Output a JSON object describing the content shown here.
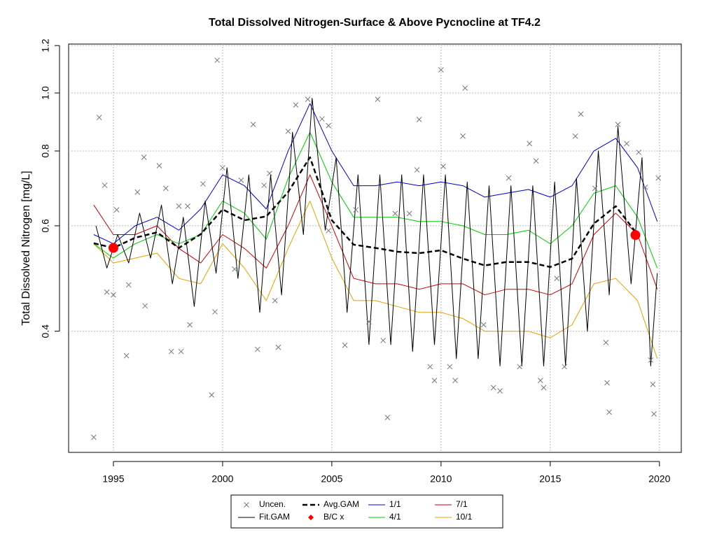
{
  "chart_data": {
    "type": "line",
    "title": "Total Dissolved Nitrogen-Surface & Above Pycnocline at TF4.2",
    "y_label": "Total Dissolved Nitrogen [mg/L]",
    "ylog": true,
    "grid": true,
    "legend": "bottom",
    "xlim": [
      1992.95,
      2021.0
    ],
    "ylim": [
      0.251,
      1.207
    ],
    "xticks": [
      1995,
      2000,
      2005,
      2010,
      2015,
      2020
    ],
    "yticks": [
      0.4,
      0.6,
      0.8,
      {
        "value": 1,
        "label": "1.0"
      },
      1.2
    ],
    "series": [
      {
        "name": "Uncen.",
        "kind": "scatter",
        "marker": "x",
        "color": "#777777",
        "x": [
          1994.1,
          1994.35,
          1994.6,
          1994.7,
          1995.0,
          1995.15,
          1995.6,
          1995.7,
          1996.1,
          1996.45,
          1996.4,
          1997.1,
          1997.4,
          1997.65,
          1998.1,
          1998.0,
          1998.4,
          1998.5,
          1999.1,
          1999.5,
          1999.75,
          2000.0,
          1999.65,
          2000.55,
          2000.85,
          2001.4,
          2001.6,
          2001.9,
          2002.15,
          2002.4,
          2002.55,
          2003.0,
          2003.35,
          2003.9,
          2004.55,
          2004.85,
          2004.85,
          2005.6,
          2006.1,
          2006.7,
          2007.1,
          2007.35,
          2007.55,
          2007.9,
          2008.55,
          2008.9,
          2009.0,
          2009.5,
          2009.7,
          2010.0,
          2010.1,
          2010.4,
          2010.65,
          2011.0,
          2011.1,
          2011.95,
          2012.4,
          2012.7,
          2013.1,
          2013.6,
          2014.05,
          2014.35,
          2014.55,
          2014.7,
          2015.3,
          2015.65,
          2016.15,
          2016.4,
          2017.05,
          2017.55,
          2017.6,
          2017.7,
          2018.1,
          2018.5,
          2019.05,
          2019.35,
          2019.6,
          2019.7,
          2019.75,
          2019.95
        ],
        "values": [
          0.266,
          0.91,
          0.701,
          0.465,
          0.46,
          0.638,
          0.364,
          0.478,
          0.683,
          0.441,
          0.781,
          0.756,
          0.693,
          0.37,
          0.37,
          0.647,
          0.647,
          0.41,
          0.705,
          0.313,
          1.134,
          0.75,
          0.431,
          0.508,
          0.715,
          0.886,
          0.373,
          0.701,
          0.734,
          0.45,
          0.376,
          0.863,
          0.955,
          0.976,
          0.905,
          0.882,
          0.589,
          0.379,
          0.638,
          0.415,
          0.976,
          0.386,
          0.287,
          0.629,
          0.629,
          0.744,
          0.903,
          0.349,
          0.331,
          1.093,
          0.754,
          0.349,
          0.331,
          0.847,
          1.019,
          0.41,
          0.322,
          0.318,
          0.721,
          0.349,
          0.823,
          0.77,
          0.331,
          0.322,
          0.49,
          0.349,
          0.847,
          0.922,
          0.693,
          0.383,
          0.328,
          0.293,
          0.886,
          0.823,
          0.796,
          0.696,
          0.358,
          0.326,
          0.291,
          0.721
        ]
      },
      {
        "name": "Fit.GAM",
        "kind": "line",
        "color": "#000000",
        "width": 1,
        "dash": "none",
        "x": [
          1994.2,
          1994.7,
          1995.2,
          1995.7,
          1996.2,
          1996.7,
          1997.2,
          1997.7,
          1998.2,
          1998.7,
          1999.2,
          1999.7,
          2000.2,
          2000.7,
          2001.2,
          2001.7,
          2002.2,
          2002.7,
          2003.2,
          2003.7,
          2004.1,
          2004.7,
          2005.2,
          2005.7,
          2006.2,
          2006.7,
          2007.2,
          2007.7,
          2008.2,
          2008.7,
          2009.2,
          2009.7,
          2010.2,
          2010.7,
          2011.2,
          2011.7,
          2012.2,
          2012.7,
          2013.2,
          2013.7,
          2014.2,
          2014.7,
          2015.2,
          2015.7,
          2016.2,
          2016.7,
          2017.2,
          2017.7,
          2018.1,
          2018.7,
          2019.2,
          2019.6,
          2019.9
        ],
        "values": [
          0.6,
          0.51,
          0.58,
          0.52,
          0.63,
          0.53,
          0.65,
          0.48,
          0.62,
          0.44,
          0.66,
          0.5,
          0.75,
          0.49,
          0.73,
          0.43,
          0.73,
          0.46,
          0.86,
          0.58,
          0.98,
          0.59,
          0.78,
          0.43,
          0.73,
          0.38,
          0.73,
          0.38,
          0.73,
          0.37,
          0.73,
          0.38,
          0.73,
          0.36,
          0.71,
          0.36,
          0.7,
          0.35,
          0.7,
          0.35,
          0.7,
          0.35,
          0.71,
          0.35,
          0.72,
          0.4,
          0.8,
          0.46,
          0.88,
          0.48,
          0.78,
          0.35,
          0.5
        ]
      },
      {
        "name": "Avg.GAM",
        "kind": "line",
        "color": "#000000",
        "width": 2.5,
        "dash": "7 4",
        "x": [
          1994.1,
          1995,
          1996,
          1997,
          1998,
          1999,
          2000,
          2001,
          2002,
          2003,
          2004,
          2005,
          2006,
          2007,
          2008,
          2009,
          2010,
          2011,
          2012,
          2013,
          2014,
          2015,
          2016,
          2017,
          2018,
          2019,
          2019.9
        ],
        "values": [
          0.561,
          0.551,
          0.573,
          0.585,
          0.551,
          0.581,
          0.639,
          0.613,
          0.622,
          0.683,
          0.781,
          0.613,
          0.558,
          0.551,
          0.543,
          0.54,
          0.546,
          0.529,
          0.515,
          0.522,
          0.522,
          0.512,
          0.529,
          0.605,
          0.647,
          0.58,
          null
        ]
      },
      {
        "name": "B/C x",
        "kind": "scatter",
        "marker": "dot",
        "color": "#ff0000",
        "x": [
          1995.0,
          2018.9
        ],
        "values": [
          0.551,
          0.579
        ]
      },
      {
        "name": "1/1",
        "kind": "line",
        "color": "#0000cc",
        "width": 1,
        "dash": "none",
        "x": [
          1994.1,
          1995,
          1996,
          1997,
          1998,
          1999,
          2000,
          2001,
          2002,
          2003,
          2004,
          2005,
          2006,
          2007,
          2008,
          2009,
          2010,
          2011,
          2012,
          2013,
          2014,
          2015,
          2016,
          2017,
          2018,
          2019,
          2019.9
        ],
        "values": [
          0.58,
          0.56,
          0.6,
          0.62,
          0.59,
          0.64,
          0.73,
          0.7,
          0.64,
          0.8,
          0.96,
          0.8,
          0.7,
          0.7,
          0.71,
          0.7,
          0.71,
          0.7,
          0.67,
          0.68,
          0.69,
          0.67,
          0.7,
          0.8,
          0.84,
          0.75,
          0.61
        ]
      },
      {
        "name": "4/1",
        "kind": "line",
        "color": "#00cc00",
        "width": 1,
        "dash": "none",
        "x": [
          1994.1,
          1995,
          1996,
          1997,
          1998,
          1999,
          2000,
          2001,
          2002,
          2003,
          2004,
          2005,
          2006,
          2007,
          2008,
          2009,
          2010,
          2011,
          2012,
          2013,
          2014,
          2015,
          2016,
          2017,
          2018,
          2019,
          2019.9
        ],
        "values": [
          0.56,
          0.53,
          0.56,
          0.58,
          0.56,
          0.58,
          0.66,
          0.63,
          0.57,
          0.72,
          0.86,
          0.71,
          0.62,
          0.62,
          0.62,
          0.61,
          0.61,
          0.6,
          0.58,
          0.58,
          0.59,
          0.56,
          0.6,
          0.68,
          0.7,
          0.62,
          0.51
        ]
      },
      {
        "name": "7/1",
        "kind": "line",
        "color": "#cc0000",
        "width": 1,
        "dash": "none",
        "x": [
          1994.1,
          1995,
          1996,
          1997,
          1998,
          1999,
          2000,
          2001,
          2002,
          2003,
          2004,
          2005,
          2006,
          2007,
          2008,
          2009,
          2010,
          2011,
          2012,
          2013,
          2014,
          2015,
          2016,
          2017,
          2018,
          2019,
          2019.9
        ],
        "values": [
          0.65,
          0.58,
          0.58,
          0.6,
          0.55,
          0.52,
          0.58,
          0.55,
          0.51,
          0.6,
          0.73,
          0.6,
          0.49,
          0.48,
          0.48,
          0.47,
          0.48,
          0.48,
          0.46,
          0.47,
          0.47,
          0.46,
          0.48,
          0.58,
          0.63,
          0.58,
          0.47
        ]
      },
      {
        "name": "10/1",
        "kind": "line",
        "color": "#e6a000",
        "width": 1,
        "dash": "none",
        "x": [
          1994.1,
          1995,
          1996,
          1997,
          1998,
          1999,
          2000,
          2001,
          2002,
          2003,
          2004,
          2005,
          2006,
          2007,
          2008,
          2009,
          2010,
          2011,
          2012,
          2013,
          2014,
          2015,
          2016,
          2017,
          2018,
          2019,
          2019.9
        ],
        "values": [
          0.56,
          0.52,
          0.53,
          0.54,
          0.49,
          0.48,
          0.56,
          0.51,
          0.45,
          0.55,
          0.66,
          0.53,
          0.45,
          0.45,
          0.44,
          0.43,
          0.43,
          0.42,
          0.4,
          0.4,
          0.4,
          0.39,
          0.41,
          0.48,
          0.49,
          0.45,
          0.36
        ]
      }
    ]
  }
}
